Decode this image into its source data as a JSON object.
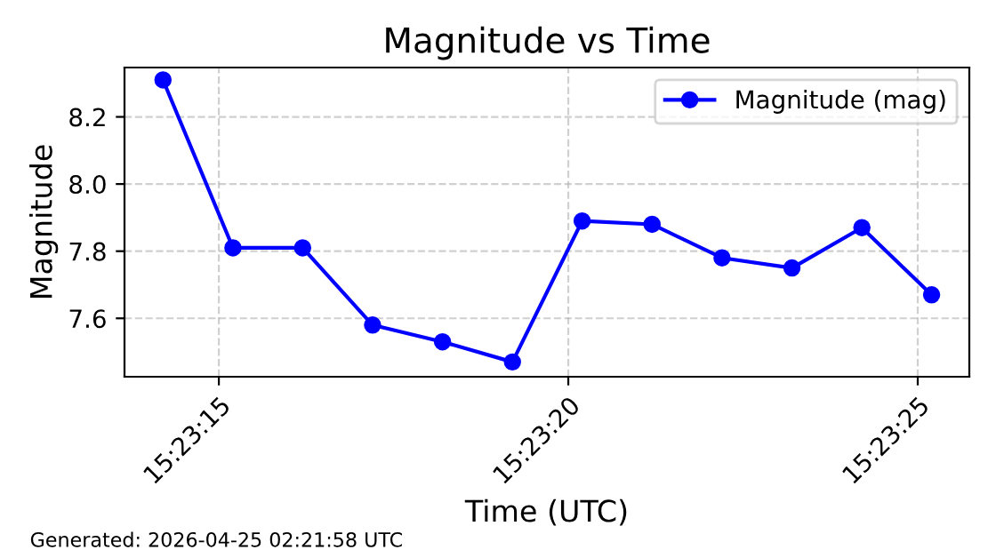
{
  "chart_data": {
    "type": "line",
    "title": "Magnitude vs Time",
    "xlabel": "Time (UTC)",
    "ylabel": "Magnitude",
    "x": [
      15.387278,
      15.387556,
      15.387833,
      15.388111,
      15.388389,
      15.388667,
      15.388944,
      15.389222,
      15.3895,
      15.389778,
      15.390056,
      15.390333
    ],
    "series": [
      {
        "name": "Magnitude (mag)",
        "color": "#0000ff",
        "values": [
          8.31,
          7.81,
          7.81,
          7.58,
          7.53,
          7.47,
          7.89,
          7.88,
          7.78,
          7.75,
          7.87,
          7.67
        ]
      }
    ],
    "xlim": [
      15.387125,
      15.390483
    ],
    "xticks": [
      {
        "value": 15.3875,
        "label": "15:23:15"
      },
      {
        "value": 15.388889,
        "label": "15:23:20"
      },
      {
        "value": 15.390278,
        "label": "15:23:25"
      }
    ],
    "ylim": [
      7.426,
      8.347
    ],
    "yticks": [
      {
        "value": 7.6,
        "label": "7.6"
      },
      {
        "value": 7.8,
        "label": "7.8"
      },
      {
        "value": 8.0,
        "label": "8.0"
      },
      {
        "value": 8.2,
        "label": "8.2"
      }
    ],
    "grid": true,
    "legend": "top right",
    "marker": "circle",
    "line_style": "solid",
    "annotations": [
      "Generated: 2026-04-25 02:21:58 UTC"
    ]
  }
}
